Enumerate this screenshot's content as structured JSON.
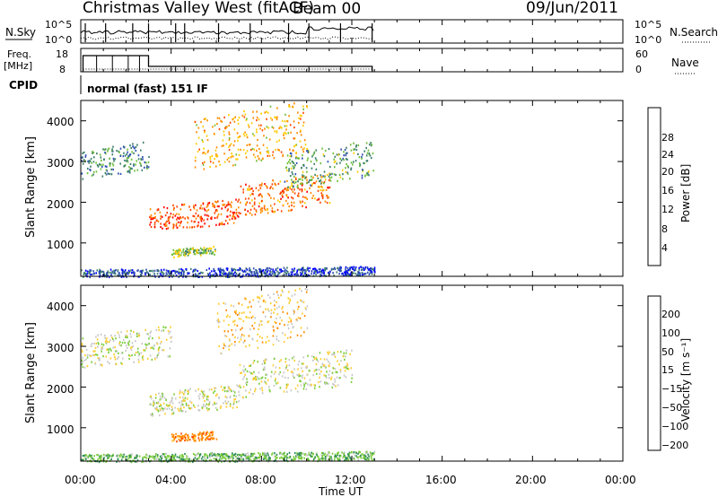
{
  "header": {
    "title": "Christmas Valley West (fitACF)",
    "beam": "Beam 00",
    "date": "09/Jun/2011"
  },
  "noise_panel": {
    "left_label": "N.Sky",
    "left_ticks": [
      "10^5",
      "10^0"
    ],
    "right_ticks": [
      "10^5",
      "10^0"
    ],
    "right_label": "N.Search"
  },
  "freq_panel": {
    "left_label_line1": "Freq.",
    "left_label_line2": "[MHz]",
    "left_ticks": [
      "18",
      "8"
    ],
    "right_ticks": [
      "60",
      "0"
    ],
    "right_label": "Nave"
  },
  "cpid": {
    "label": "CPID",
    "value": "normal (fast) 151 IF"
  },
  "power_panel": {
    "ylabel": "Slant Range [km]",
    "yticks": [
      "4000",
      "3000",
      "2000",
      "1000"
    ],
    "colorbar_label": "Power [dB]",
    "colorbar_ticks": [
      "28",
      "24",
      "20",
      "16",
      "12",
      "8",
      "4"
    ],
    "colors": [
      "#0000ff",
      "#2e4fb0",
      "#3b7f6a",
      "#6fbf3a",
      "#ffcc00",
      "#ff8c00",
      "#ff4500",
      "#ff0000"
    ]
  },
  "velocity_panel": {
    "ylabel": "Slant Range [km]",
    "yticks": [
      "4000",
      "3000",
      "2000",
      "1000"
    ],
    "colorbar_label": "Velocity [m s⁻¹]",
    "colorbar_ticks": [
      "200",
      "100",
      "50",
      "15",
      "−15",
      "−50",
      "−100",
      "−200"
    ],
    "colors": [
      "#2233cc",
      "#1f6fb0",
      "#2e8b57",
      "#7ccd3c",
      "#c8c8c8",
      "#ffcc33",
      "#ff8c00",
      "#ff4500",
      "#ff0000"
    ]
  },
  "x_axis": {
    "ticks": [
      "00:00",
      "04:00",
      "08:00",
      "12:00",
      "16:00",
      "20:00",
      "00:00"
    ],
    "label": "Time UT"
  },
  "chart_data": [
    {
      "type": "heatmap",
      "name": "Power",
      "x_range": [
        "00:00",
        "24:00"
      ],
      "y_range_km": [
        180,
        4500
      ],
      "data_extent_x": [
        "00:00",
        "13:00"
      ],
      "colorbar_ticks_dB": [
        4,
        8,
        12,
        16,
        20,
        24,
        28
      ],
      "features": [
        {
          "x": [
            "00:00",
            "03:00"
          ],
          "y_km": [
            2700,
            3400
          ],
          "level_dB": 10
        },
        {
          "x": [
            "03:00",
            "07:00"
          ],
          "y_km": [
            1400,
            2000
          ],
          "level_dB": 26
        },
        {
          "x": [
            "07:00",
            "11:00"
          ],
          "y_km": [
            1800,
            2600
          ],
          "level_dB": 24
        },
        {
          "x": [
            "05:00",
            "10:00"
          ],
          "y_km": [
            3000,
            4300
          ],
          "level_dB": 20
        },
        {
          "x": [
            "09:00",
            "13:00"
          ],
          "y_km": [
            2500,
            3400
          ],
          "level_dB": 12
        },
        {
          "x": [
            "04:00",
            "06:00"
          ],
          "y_km": [
            700,
            900
          ],
          "level_dB": 14
        },
        {
          "x": [
            "00:00",
            "13:00"
          ],
          "y_km": [
            180,
            400
          ],
          "level_dB": 6
        }
      ]
    },
    {
      "type": "heatmap",
      "name": "Velocity",
      "x_range": [
        "00:00",
        "24:00"
      ],
      "y_range_km": [
        180,
        4500
      ],
      "data_extent_x": [
        "00:00",
        "13:00"
      ],
      "colorbar_ticks_ms": [
        -200,
        -100,
        -50,
        -15,
        15,
        50,
        100,
        200
      ],
      "features": [
        {
          "x": [
            "00:00",
            "04:00"
          ],
          "y_km": [
            2600,
            3400
          ],
          "velocity": 0
        },
        {
          "x": [
            "03:00",
            "07:00"
          ],
          "y_km": [
            1400,
            2000
          ],
          "velocity": 0
        },
        {
          "x": [
            "07:00",
            "12:00"
          ],
          "y_km": [
            1900,
            2800
          ],
          "velocity": 0
        },
        {
          "x": [
            "06:00",
            "10:00"
          ],
          "y_km": [
            3000,
            4300
          ],
          "velocity": -30
        },
        {
          "x": [
            "04:00",
            "06:00"
          ],
          "y_km": [
            700,
            900
          ],
          "velocity": -80
        },
        {
          "x": [
            "00:00",
            "13:00"
          ],
          "y_km": [
            180,
            400
          ],
          "velocity": 40
        }
      ]
    }
  ]
}
